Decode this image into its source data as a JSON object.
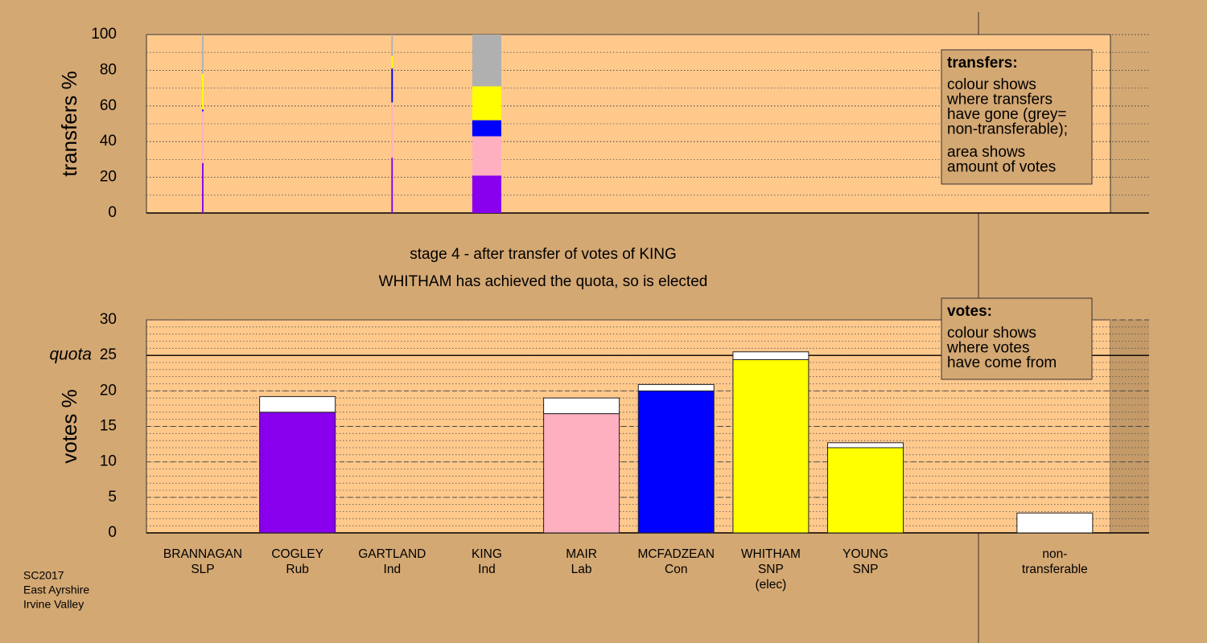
{
  "stage": [
    "stage 4 - after transfer of votes of KING",
    "WHITHAM has achieved the quota, so is elected"
  ],
  "footer": [
    "SC2017",
    "East Ayrshire",
    "Irvine Valley"
  ],
  "chart_data": [
    {
      "type": "transfer_columns",
      "ylabel": "transfers %",
      "ylim": [
        0,
        100
      ],
      "yticks": [
        0,
        20,
        40,
        60,
        80,
        100
      ],
      "minor_grid_step": 10,
      "widths": [
        0.2,
        null,
        0.2,
        3.8,
        null,
        null,
        null,
        null,
        null,
        null
      ],
      "series": [
        {
          "color": "#8800ee",
          "values": [
            28,
            null,
            31,
            21,
            null,
            null,
            null,
            null,
            null,
            null
          ]
        },
        {
          "color": "#ffb0c0",
          "values": [
            29,
            null,
            31,
            22,
            null,
            null,
            null,
            null,
            null,
            null
          ]
        },
        {
          "color": "#0000ff",
          "values": [
            1,
            null,
            19,
            9,
            null,
            null,
            null,
            null,
            null,
            null
          ]
        },
        {
          "color": "#ffff00",
          "values": [
            20,
            null,
            7,
            19,
            null,
            null,
            null,
            null,
            null,
            null
          ]
        },
        {
          "color": "#b0b0b0",
          "values": [
            22,
            null,
            12,
            29,
            null,
            null,
            null,
            null,
            null,
            null
          ]
        }
      ],
      "legend": {
        "title": "transfers:",
        "paragraphs": [
          [
            "colour shows",
            "where transfers",
            "have gone (grey=",
            "non-transferable);"
          ],
          [
            "area shows",
            "amount of votes"
          ]
        ]
      }
    },
    {
      "type": "vote_bars",
      "ylabel": "votes %",
      "ylim": [
        0,
        30
      ],
      "yticks": [
        0,
        5,
        10,
        15,
        20,
        25,
        30
      ],
      "minor_grid_step": 1,
      "quota": 25,
      "quota_label": "quota",
      "categories": [
        [
          "BRANNAGAN",
          "SLP"
        ],
        [
          "COGLEY",
          "Rub"
        ],
        [
          "GARTLAND",
          "Ind"
        ],
        [
          "KING",
          "Ind"
        ],
        [
          "MAIR",
          "Lab"
        ],
        [
          "MCFADZEAN",
          "Con"
        ],
        [
          "WHITHAM",
          "SNP",
          "(elec)"
        ],
        [
          "YOUNG",
          "SNP"
        ],
        null,
        [
          "non-",
          "transferable"
        ]
      ],
      "series": [
        {
          "colors": [
            "#000000",
            "#8800ee",
            "#000000",
            "#000000",
            "#ffb0c0",
            "#0000ff",
            "#ffff00",
            "#ffff00",
            null,
            "#ffffff"
          ],
          "values": [
            0,
            17.0,
            0,
            0,
            16.8,
            20.0,
            24.4,
            12.0,
            null,
            0
          ]
        },
        {
          "color": "#ffffff",
          "values": [
            0,
            2.2,
            0,
            0,
            2.2,
            0.9,
            1.1,
            0.7,
            null,
            2.8
          ]
        }
      ],
      "legend": {
        "title": "votes:",
        "paragraphs": [
          [
            "colour shows",
            "where votes",
            "have come from"
          ]
        ]
      }
    }
  ]
}
